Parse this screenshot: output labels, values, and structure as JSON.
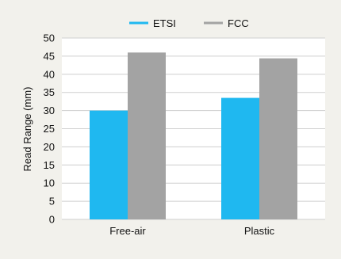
{
  "chart_data": {
    "type": "bar",
    "categories": [
      "Free-air",
      "Plastic"
    ],
    "series": [
      {
        "name": "ETSI",
        "values": [
          30,
          33.5
        ],
        "color": "#1fb8f0"
      },
      {
        "name": "FCC",
        "values": [
          46,
          44.4
        ],
        "color": "#a3a3a3"
      }
    ],
    "ylabel": "Read Range (mm)",
    "xlabel": "",
    "ylim": [
      0,
      50
    ],
    "yticks": [
      0,
      5,
      10,
      15,
      20,
      25,
      30,
      35,
      40,
      45,
      50
    ],
    "grid": true,
    "legend_position": "top"
  },
  "colors": {
    "background": "#f2f1ec",
    "plot_background": "#ffffff",
    "grid": "#cfcfcf",
    "text": "#111111"
  }
}
